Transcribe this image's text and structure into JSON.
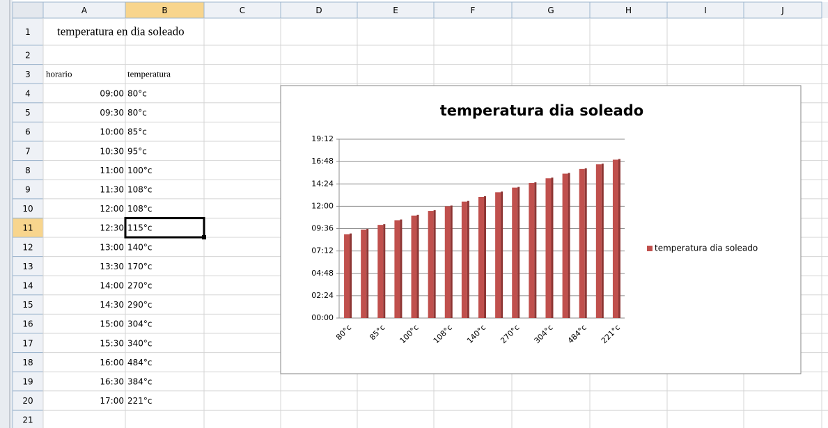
{
  "sheet": {
    "columns": [
      "A",
      "B",
      "C",
      "D",
      "E",
      "F",
      "G",
      "H",
      "I",
      "J"
    ],
    "row_numbers": [
      1,
      2,
      3,
      4,
      5,
      6,
      7,
      8,
      9,
      10,
      11,
      12,
      13,
      14,
      15,
      16,
      17,
      18,
      19,
      20,
      21
    ],
    "title_cell": "temperatura en dia soleado",
    "header": [
      "horario",
      "temperatura"
    ],
    "rows": [
      [
        "09:00",
        "80°c"
      ],
      [
        "09:30",
        "80°c"
      ],
      [
        "10:00",
        "85°c"
      ],
      [
        "10:30",
        "95°c"
      ],
      [
        "11:00",
        "100°c"
      ],
      [
        "11:30",
        "108°c"
      ],
      [
        "12:00",
        "108°c"
      ],
      [
        "12:30",
        "115°c"
      ],
      [
        "13:00",
        "140°c"
      ],
      [
        "13:30",
        "170°c"
      ],
      [
        "14:00",
        "270°c"
      ],
      [
        "14:30",
        "290°c"
      ],
      [
        "15:00",
        "304°c"
      ],
      [
        "15:30",
        "340°c"
      ],
      [
        "16:00",
        "484°c"
      ],
      [
        "16:30",
        "384°c"
      ],
      [
        "17:00",
        "221°c"
      ]
    ]
  },
  "chart_data": {
    "type": "bar",
    "title": "temperatura dia soleado",
    "categories": [
      "80°c",
      null,
      "85°c",
      null,
      "100°c",
      null,
      "108°c",
      null,
      "140°c",
      null,
      "270°c",
      null,
      "304°c",
      null,
      "484°c",
      null,
      "221°c"
    ],
    "series": [
      {
        "name": "temperatura dia soleado",
        "color": "#c0504d",
        "values": [
          9,
          9.5,
          10,
          10.5,
          11,
          11.5,
          12,
          12.5,
          13,
          13.5,
          14,
          14.5,
          15,
          15.5,
          16,
          16.5,
          17
        ]
      }
    ],
    "ylim": [
      0,
      19.2
    ],
    "yticks": [
      {
        "value": 0,
        "label": "00:00"
      },
      {
        "value": 2.4,
        "label": "02:24"
      },
      {
        "value": 4.8,
        "label": "04:48"
      },
      {
        "value": 7.2,
        "label": "07:12"
      },
      {
        "value": 9.6,
        "label": "09:36"
      },
      {
        "value": 12,
        "label": "12:00"
      },
      {
        "value": 14.4,
        "label": "14:24"
      },
      {
        "value": 16.8,
        "label": "16:48"
      },
      {
        "value": 19.2,
        "label": "19:12"
      }
    ],
    "grid": true,
    "legend": "right"
  }
}
